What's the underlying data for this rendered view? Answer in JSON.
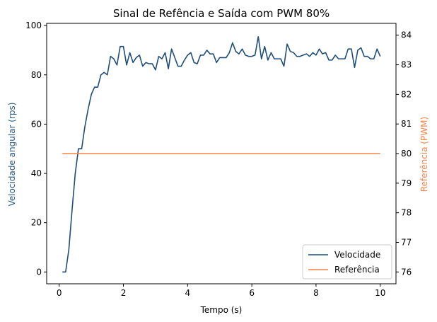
{
  "chart_data": {
    "type": "line",
    "title": "Sinal de Refência e Saída com PWM 80%",
    "xlabel": "Tempo (s)",
    "ylabel_left": "Velocidade angular (rps)",
    "ylabel_right": "Referência (PWM)",
    "xlim": [
      -0.39,
      10.49
    ],
    "ylim_left": [
      -4.8,
      100.9
    ],
    "ylim_right": [
      75.6,
      84.4
    ],
    "xticks": [
      0,
      2,
      4,
      6,
      8,
      10
    ],
    "yticks_left": [
      0,
      20,
      40,
      60,
      80,
      100
    ],
    "yticks_right": [
      76,
      77,
      78,
      79,
      80,
      81,
      82,
      83,
      84
    ],
    "grid": false,
    "legend_position": "lower-right",
    "colors": {
      "velocidade": "#1f4e79",
      "referencia": "#f4844c",
      "ylabel_left": "#2b5b84",
      "ylabel_right": "#f4844c"
    },
    "series": [
      {
        "name": "Velocidade",
        "axis": "left",
        "x": [
          0.1,
          0.2,
          0.3,
          0.4,
          0.5,
          0.6,
          0.7,
          0.8,
          0.9,
          1.0,
          1.1,
          1.2,
          1.3,
          1.4,
          1.5,
          1.6,
          1.7,
          1.8,
          1.9,
          2.0,
          2.1,
          2.2,
          2.3,
          2.4,
          2.5,
          2.6,
          2.7,
          2.8,
          2.9,
          3.0,
          3.1,
          3.2,
          3.3,
          3.4,
          3.5,
          3.6,
          3.7,
          3.8,
          3.9,
          4.0,
          4.1,
          4.2,
          4.3,
          4.4,
          4.5,
          4.6,
          4.7,
          4.8,
          4.9,
          5.0,
          5.1,
          5.2,
          5.3,
          5.4,
          5.5,
          5.6,
          5.7,
          5.8,
          5.9,
          6.0,
          6.1,
          6.2,
          6.3,
          6.4,
          6.5,
          6.6,
          6.7,
          6.8,
          6.9,
          7.0,
          7.1,
          7.2,
          7.3,
          7.4,
          7.5,
          7.6,
          7.7,
          7.8,
          7.9,
          8.0,
          8.1,
          8.2,
          8.3,
          8.4,
          8.5,
          8.6,
          8.7,
          8.8,
          8.9,
          9.0,
          9.1,
          9.2,
          9.3,
          9.4,
          9.5,
          9.6,
          9.7,
          9.8,
          9.9,
          10.0
        ],
        "values": [
          0,
          0,
          9,
          25,
          40,
          50,
          50,
          59,
          66,
          72,
          75,
          75,
          80,
          81,
          80,
          87.5,
          86.5,
          84,
          91.5,
          91.5,
          84,
          89,
          85,
          87,
          88,
          83.5,
          85,
          84.5,
          84.5,
          82,
          87.5,
          86.5,
          89,
          82.5,
          90.5,
          87,
          83.5,
          83.5,
          86,
          88,
          89,
          85,
          84.5,
          88,
          88,
          90,
          88.5,
          88.5,
          85,
          87,
          87,
          87,
          89,
          93,
          89.5,
          88.5,
          90.5,
          88,
          87.5,
          87.5,
          88,
          95.5,
          86.5,
          91.5,
          86,
          89,
          86.5,
          86.5,
          86.5,
          83.5,
          92.5,
          89.5,
          89,
          87.5,
          87.5,
          88,
          88.5,
          87.5,
          89,
          88,
          90.5,
          88.5,
          89,
          86,
          86,
          88,
          86.5,
          86.5,
          86.5,
          90.5,
          90.5,
          83,
          90,
          91,
          87.5,
          87.5,
          86.5,
          86.5,
          90.5,
          87.5
        ]
      },
      {
        "name": "Referência",
        "axis": "right",
        "x": [
          0.1,
          10.0
        ],
        "values": [
          80,
          80
        ]
      }
    ]
  }
}
